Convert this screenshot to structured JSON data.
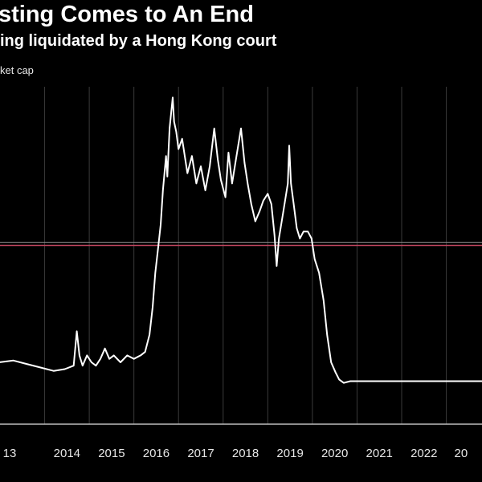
{
  "header": {
    "title": "sting Comes to An End",
    "subtitle": "ing liquidated by a Hong Kong court",
    "unit_label": "ket cap"
  },
  "colors": {
    "background": "#000000",
    "line": "#ffffff",
    "grid": "#3a3a3a",
    "reference_line": "#c0455f"
  },
  "chart_data": {
    "type": "line",
    "title": "sting Comes to An End",
    "subtitle": "ing liquidated by a Hong Kong court",
    "ylabel": "ket cap",
    "x_tick_labels": [
      "13",
      "2014",
      "2015",
      "2016",
      "2017",
      "2018",
      "2019",
      "2020",
      "2021",
      "2022",
      "20"
    ],
    "xlim": [
      2013.0,
      2023.8
    ],
    "ylim": [
      0,
      100
    ],
    "grid": true,
    "reference_line": 52,
    "series": [
      {
        "values": [
          [
            2012.98,
            18
          ],
          [
            2013.3,
            18.5
          ],
          [
            2013.6,
            17.5
          ],
          [
            2013.9,
            16.5
          ],
          [
            2014.2,
            15.5
          ],
          [
            2014.45,
            16
          ],
          [
            2014.65,
            17
          ],
          [
            2014.72,
            27
          ],
          [
            2014.78,
            20
          ],
          [
            2014.85,
            17
          ],
          [
            2014.95,
            20
          ],
          [
            2015.05,
            18
          ],
          [
            2015.15,
            17
          ],
          [
            2015.25,
            19
          ],
          [
            2015.35,
            22
          ],
          [
            2015.45,
            19
          ],
          [
            2015.55,
            20
          ],
          [
            2015.7,
            18
          ],
          [
            2015.85,
            20
          ],
          [
            2016.0,
            19
          ],
          [
            2016.15,
            20
          ],
          [
            2016.25,
            21
          ],
          [
            2016.35,
            26
          ],
          [
            2016.42,
            34
          ],
          [
            2016.48,
            44
          ],
          [
            2016.55,
            52
          ],
          [
            2016.6,
            58
          ],
          [
            2016.65,
            68
          ],
          [
            2016.72,
            78
          ],
          [
            2016.75,
            72
          ],
          [
            2016.8,
            86
          ],
          [
            2016.87,
            95
          ],
          [
            2016.9,
            88
          ],
          [
            2016.95,
            85
          ],
          [
            2017.0,
            80
          ],
          [
            2017.08,
            83
          ],
          [
            2017.2,
            73
          ],
          [
            2017.3,
            78
          ],
          [
            2017.4,
            70
          ],
          [
            2017.5,
            75
          ],
          [
            2017.6,
            68
          ],
          [
            2017.7,
            75
          ],
          [
            2017.8,
            86
          ],
          [
            2017.88,
            77
          ],
          [
            2017.95,
            71
          ],
          [
            2018.05,
            66
          ],
          [
            2018.12,
            79
          ],
          [
            2018.2,
            70
          ],
          [
            2018.3,
            78
          ],
          [
            2018.4,
            86
          ],
          [
            2018.48,
            76
          ],
          [
            2018.55,
            70
          ],
          [
            2018.63,
            64
          ],
          [
            2018.72,
            59
          ],
          [
            2018.82,
            62
          ],
          [
            2018.9,
            65
          ],
          [
            2019.0,
            67
          ],
          [
            2019.08,
            64
          ],
          [
            2019.15,
            55
          ],
          [
            2019.2,
            46
          ],
          [
            2019.25,
            54
          ],
          [
            2019.35,
            62
          ],
          [
            2019.45,
            70
          ],
          [
            2019.48,
            81
          ],
          [
            2019.52,
            70
          ],
          [
            2019.58,
            64
          ],
          [
            2019.65,
            57
          ],
          [
            2019.72,
            54
          ],
          [
            2019.8,
            56
          ],
          [
            2019.9,
            56
          ],
          [
            2019.98,
            54
          ],
          [
            2020.05,
            48
          ],
          [
            2020.15,
            44
          ],
          [
            2020.25,
            36
          ],
          [
            2020.33,
            26
          ],
          [
            2020.42,
            18
          ],
          [
            2020.52,
            15
          ],
          [
            2020.6,
            13
          ],
          [
            2020.7,
            12
          ],
          [
            2020.85,
            12.5
          ],
          [
            2021.0,
            12.5
          ],
          [
            2021.5,
            12.5
          ],
          [
            2022.0,
            12.5
          ],
          [
            2022.5,
            12.5
          ],
          [
            2023.2,
            12.5
          ],
          [
            2023.8,
            12.5
          ]
        ]
      }
    ]
  }
}
